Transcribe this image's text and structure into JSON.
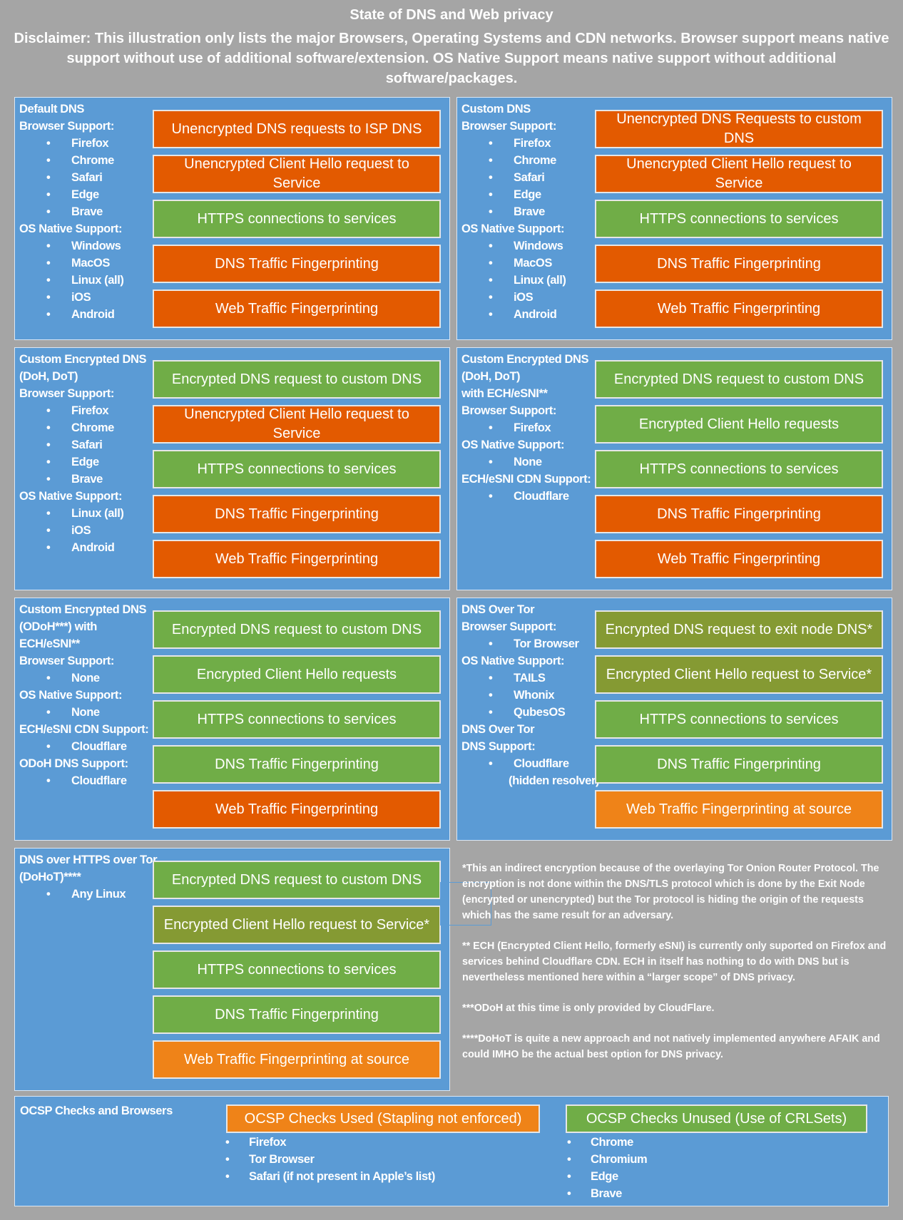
{
  "title": "State of DNS and Web privacy",
  "disclaimer": "Disclaimer: This illustration only lists the major Browsers, Operating Systems and CDN networks. Browser support means native support without use of additional software/extension. OS Native Support means native support without additional software/packages.",
  "colors": {
    "bad": "#e35a00",
    "good": "#70ad47",
    "indirect": "#859a33",
    "source": "#ef8318",
    "panel": "#5b9bd5",
    "background": "#a5a5a5"
  },
  "panels": [
    {
      "side": [
        {
          "kind": "heading",
          "text": "Default DNS"
        },
        {
          "kind": "heading",
          "text": "Browser Support:"
        },
        {
          "kind": "bullet",
          "text": "Firefox"
        },
        {
          "kind": "bullet",
          "text": "Chrome"
        },
        {
          "kind": "bullet",
          "text": "Safari"
        },
        {
          "kind": "bullet",
          "text": "Edge"
        },
        {
          "kind": "bullet",
          "text": "Brave"
        },
        {
          "kind": "heading",
          "text": "OS Native Support:"
        },
        {
          "kind": "bullet",
          "text": "Windows"
        },
        {
          "kind": "bullet",
          "text": "MacOS"
        },
        {
          "kind": "bullet",
          "text": "Linux (all)"
        },
        {
          "kind": "bullet",
          "text": "iOS"
        },
        {
          "kind": "bullet",
          "text": "Android"
        }
      ],
      "boxes": [
        {
          "text": "Unencrypted DNS requests to ISP DNS",
          "status": "bad"
        },
        {
          "text": "Unencrypted Client Hello request to Service",
          "status": "bad"
        },
        {
          "text": "HTTPS connections to services",
          "status": "good"
        },
        {
          "text": "DNS Traffic Fingerprinting",
          "status": "bad"
        },
        {
          "text": "Web Traffic Fingerprinting",
          "status": "bad"
        }
      ]
    },
    {
      "side": [
        {
          "kind": "heading",
          "text": "Custom DNS"
        },
        {
          "kind": "heading",
          "text": "Browser Support:"
        },
        {
          "kind": "bullet",
          "text": "Firefox"
        },
        {
          "kind": "bullet",
          "text": "Chrome"
        },
        {
          "kind": "bullet",
          "text": "Safari"
        },
        {
          "kind": "bullet",
          "text": "Edge"
        },
        {
          "kind": "bullet",
          "text": "Brave"
        },
        {
          "kind": "heading",
          "text": "OS Native Support:"
        },
        {
          "kind": "bullet",
          "text": "Windows"
        },
        {
          "kind": "bullet",
          "text": "MacOS"
        },
        {
          "kind": "bullet",
          "text": "Linux (all)"
        },
        {
          "kind": "bullet",
          "text": "iOS"
        },
        {
          "kind": "bullet",
          "text": "Android"
        }
      ],
      "boxes": [
        {
          "text": "Unencrypted DNS Requests to custom DNS",
          "status": "bad"
        },
        {
          "text": "Unencrypted Client Hello request to Service",
          "status": "bad"
        },
        {
          "text": "HTTPS connections to services",
          "status": "good"
        },
        {
          "text": "DNS Traffic Fingerprinting",
          "status": "bad"
        },
        {
          "text": "Web Traffic Fingerprinting",
          "status": "bad"
        }
      ]
    },
    {
      "side": [
        {
          "kind": "heading",
          "text": "Custom Encrypted DNS"
        },
        {
          "kind": "heading",
          "text": "(DoH, DoT)"
        },
        {
          "kind": "heading",
          "text": "Browser Support:"
        },
        {
          "kind": "bullet",
          "text": "Firefox"
        },
        {
          "kind": "bullet",
          "text": "Chrome"
        },
        {
          "kind": "bullet",
          "text": "Safari"
        },
        {
          "kind": "bullet",
          "text": "Edge"
        },
        {
          "kind": "bullet",
          "text": "Brave"
        },
        {
          "kind": "heading",
          "text": "OS Native Support:"
        },
        {
          "kind": "bullet",
          "text": "Linux (all)"
        },
        {
          "kind": "bullet",
          "text": "iOS"
        },
        {
          "kind": "bullet",
          "text": "Android"
        }
      ],
      "boxes": [
        {
          "text": "Encrypted DNS request to custom DNS",
          "status": "good"
        },
        {
          "text": "Unencrypted Client Hello request to Service",
          "status": "bad"
        },
        {
          "text": "HTTPS connections to services",
          "status": "good"
        },
        {
          "text": "DNS Traffic Fingerprinting",
          "status": "bad"
        },
        {
          "text": "Web Traffic Fingerprinting",
          "status": "bad"
        }
      ]
    },
    {
      "side": [
        {
          "kind": "heading",
          "text": "Custom Encrypted DNS"
        },
        {
          "kind": "heading",
          "text": "(DoH, DoT)"
        },
        {
          "kind": "heading",
          "text": "with ECH/eSNI**"
        },
        {
          "kind": "heading",
          "text": "Browser Support:"
        },
        {
          "kind": "bullet",
          "text": "Firefox"
        },
        {
          "kind": "heading",
          "text": "OS Native Support:"
        },
        {
          "kind": "bullet",
          "text": "None"
        },
        {
          "kind": "heading",
          "text": "ECH/eSNI CDN Support:"
        },
        {
          "kind": "bullet",
          "text": "Cloudflare"
        }
      ],
      "boxes": [
        {
          "text": "Encrypted DNS request to custom DNS",
          "status": "good"
        },
        {
          "text": "Encrypted Client Hello requests",
          "status": "good"
        },
        {
          "text": "HTTPS connections to services",
          "status": "good"
        },
        {
          "text": "DNS Traffic Fingerprinting",
          "status": "bad"
        },
        {
          "text": "Web Traffic Fingerprinting",
          "status": "bad"
        }
      ]
    },
    {
      "side": [
        {
          "kind": "heading",
          "text": "Custom Encrypted DNS"
        },
        {
          "kind": "heading",
          "text": "(ODoH***) with"
        },
        {
          "kind": "heading",
          "text": "ECH/eSNI**"
        },
        {
          "kind": "heading",
          "text": "Browser Support:"
        },
        {
          "kind": "bullet",
          "text": "None"
        },
        {
          "kind": "heading",
          "text": "OS Native Support:"
        },
        {
          "kind": "bullet",
          "text": "None"
        },
        {
          "kind": "heading",
          "text": "ECH/eSNI CDN Support:"
        },
        {
          "kind": "bullet",
          "text": "Cloudflare"
        },
        {
          "kind": "heading",
          "text": "ODoH DNS Support:"
        },
        {
          "kind": "bullet",
          "text": "Cloudflare"
        }
      ],
      "boxes": [
        {
          "text": "Encrypted DNS request to custom DNS",
          "status": "good"
        },
        {
          "text": "Encrypted Client Hello requests",
          "status": "good"
        },
        {
          "text": "HTTPS connections to services",
          "status": "good"
        },
        {
          "text": "DNS Traffic Fingerprinting",
          "status": "good"
        },
        {
          "text": "Web Traffic Fingerprinting",
          "status": "bad"
        }
      ]
    },
    {
      "side": [
        {
          "kind": "heading",
          "text": "DNS Over Tor"
        },
        {
          "kind": "heading",
          "text": "Browser Support:"
        },
        {
          "kind": "bullet",
          "text": "Tor Browser"
        },
        {
          "kind": "heading",
          "text": "OS Native Support:"
        },
        {
          "kind": "bullet",
          "text": "TAILS"
        },
        {
          "kind": "bullet",
          "text": "Whonix"
        },
        {
          "kind": "bullet",
          "text": "QubesOS"
        },
        {
          "kind": "heading",
          "text": "DNS Over Tor"
        },
        {
          "kind": "heading",
          "text": "DNS Support:"
        },
        {
          "kind": "bullet",
          "text": "Cloudflare"
        },
        {
          "kind": "note",
          "text": "(hidden resolver)"
        }
      ],
      "boxes": [
        {
          "text": "Encrypted DNS request to exit node DNS*",
          "status": "indirect"
        },
        {
          "text": "Encrypted Client Hello request to Service*",
          "status": "indirect"
        },
        {
          "text": "HTTPS connections to services",
          "status": "good"
        },
        {
          "text": "DNS Traffic Fingerprinting",
          "status": "good"
        },
        {
          "text": "Web Traffic Fingerprinting at source",
          "status": "source"
        }
      ]
    },
    {
      "side": [
        {
          "kind": "heading",
          "text": "DNS over HTTPS over Tor"
        },
        {
          "kind": "heading",
          "text": "(DoHoT)****"
        },
        {
          "kind": "bullet",
          "text": "Any Linux"
        }
      ],
      "boxes": [
        {
          "text": "Encrypted DNS request to custom DNS",
          "status": "good"
        },
        {
          "text": "Encrypted Client Hello request to Service*",
          "status": "indirect"
        },
        {
          "text": "HTTPS connections to services",
          "status": "good"
        },
        {
          "text": "DNS Traffic Fingerprinting",
          "status": "good"
        },
        {
          "text": "Web Traffic Fingerprinting at source",
          "status": "source"
        }
      ]
    }
  ],
  "footnotes": [
    "*This an indirect encryption because of the overlaying Tor Onion Router Protocol. The encryption is not done within the DNS/TLS protocol which is done by the Exit Node (encrypted or unencrypted) but the Tor protocol is hiding the origin of the requests which has the same result for an adversary.",
    "** ECH (Encrypted Client Hello, formerly eSNI) is currently only suported on Firefox and services behind Cloudflare CDN. ECH in itself has nothing to do with DNS but is nevertheless mentioned here within a “larger scope” of DNS privacy.",
    "***ODoH at this time is only provided by CloudFlare.",
    "****DoHoT is quite a new approach and not natively implemented anywhere AFAIK and could IMHO be the actual best option for DNS privacy."
  ],
  "ocsp": {
    "title": "OCSP Checks and Browsers",
    "used": {
      "label": "OCSP Checks Used (Stapling not enforced)",
      "status": "source",
      "browsers": [
        "Firefox",
        "Tor Browser",
        "Safari (if not present in Apple’s list)"
      ]
    },
    "unused": {
      "label": "OCSP Checks Unused (Use of CRLSets)",
      "status": "good",
      "browsers": [
        "Chrome",
        "Chromium",
        "Edge",
        "Brave"
      ]
    }
  }
}
